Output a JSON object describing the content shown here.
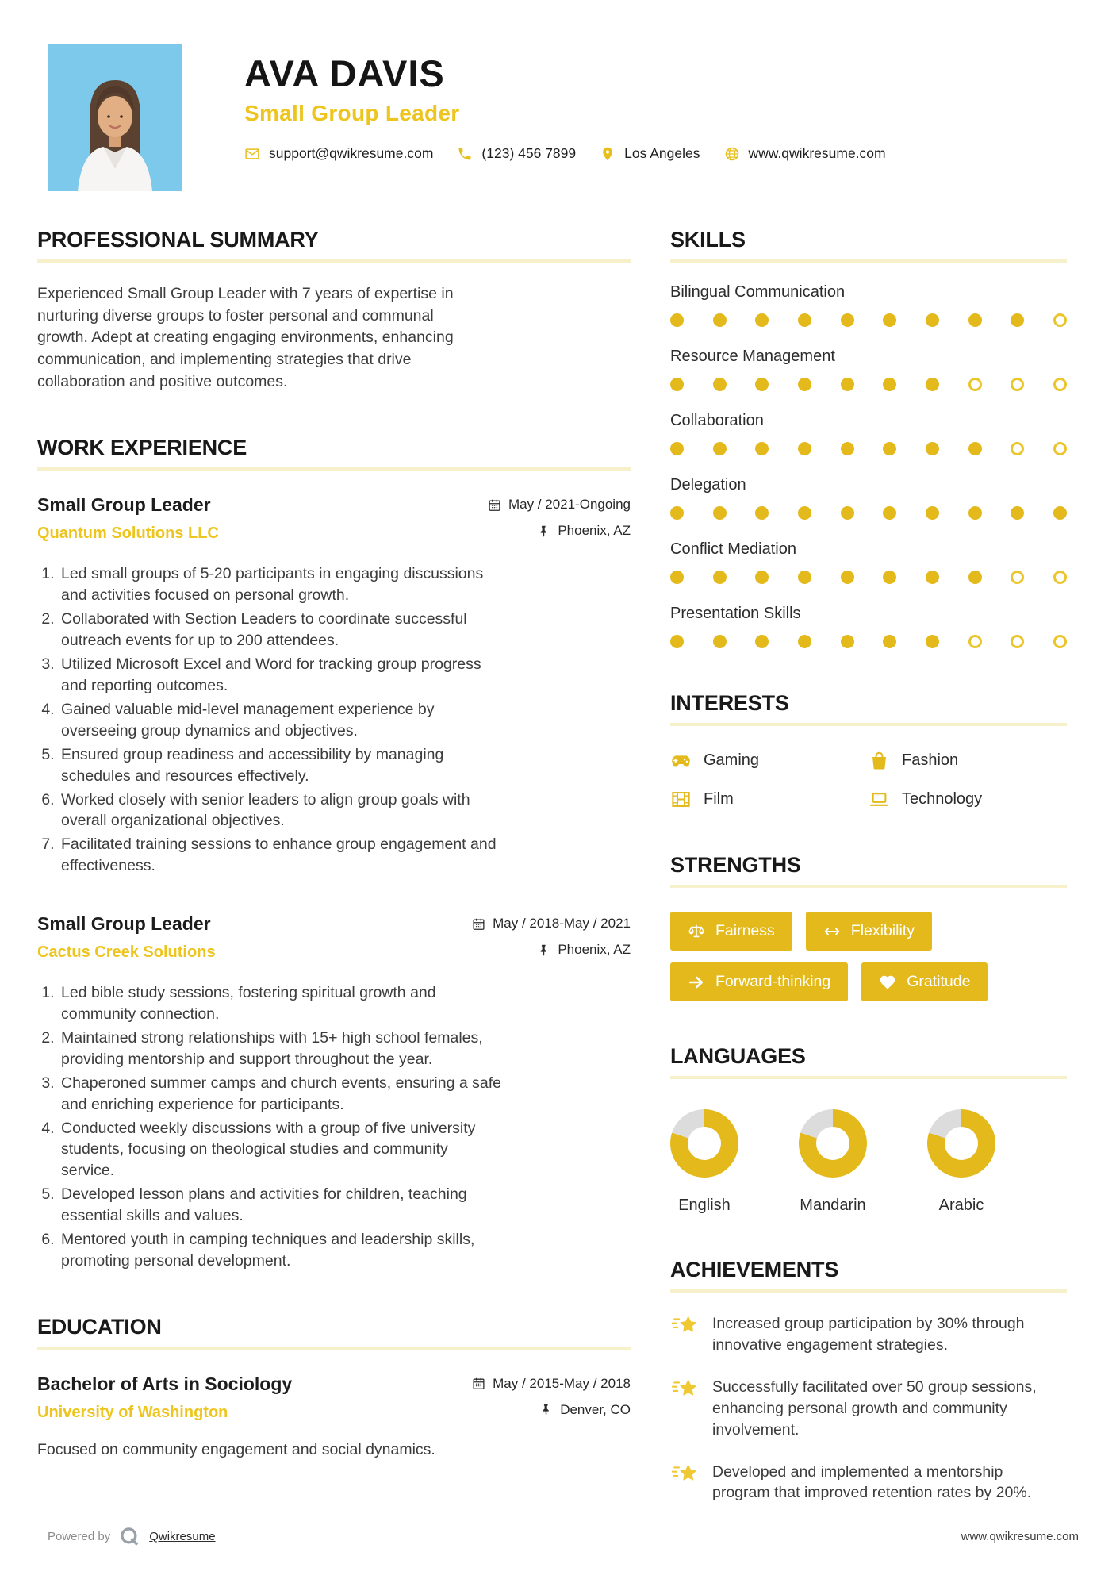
{
  "theme": {
    "accent": "#E3B91C",
    "accent_text": "#EDC51E",
    "rule_color": "#F6F0CB",
    "photo_bg": "#7CC9EC"
  },
  "header": {
    "name": "AVA DAVIS",
    "title": "Small Group Leader",
    "contact": [
      {
        "icon": "envelope",
        "text": "support@qwikresume.com"
      },
      {
        "icon": "phone",
        "text": "(123) 456 7899"
      },
      {
        "icon": "map-pin",
        "text": "Los Angeles"
      },
      {
        "icon": "globe",
        "text": "www.qwikresume.com"
      }
    ]
  },
  "summary": {
    "heading": "PROFESSIONAL SUMMARY",
    "text": "Experienced Small Group Leader with 7 years of expertise in nurturing diverse groups to foster personal and communal growth. Adept at creating engaging environments, enhancing communication, and implementing strategies that drive collaboration and positive outcomes."
  },
  "work": {
    "heading": "WORK EXPERIENCE",
    "jobs": [
      {
        "title": "Small Group Leader",
        "company": "Quantum Solutions LLC",
        "dates": "May / 2021-Ongoing",
        "location": "Phoenix, AZ",
        "bullets": [
          "Led small groups of 5-20 participants in engaging discussions and activities focused on personal growth.",
          "Collaborated with Section Leaders to coordinate successful outreach events for up to 200 attendees.",
          "Utilized Microsoft Excel and Word for tracking group progress and reporting outcomes.",
          "Gained valuable mid-level management experience by overseeing group dynamics and objectives.",
          "Ensured group readiness and accessibility by managing schedules and resources effectively.",
          "Worked closely with senior leaders to align group goals with overall organizational objectives.",
          "Facilitated training sessions to enhance group engagement and effectiveness."
        ]
      },
      {
        "title": "Small Group Leader",
        "company": "Cactus Creek Solutions",
        "dates": "May / 2018-May / 2021",
        "location": "Phoenix, AZ",
        "bullets": [
          "Led bible study sessions, fostering spiritual growth and community connection.",
          "Maintained strong relationships with 15+ high school females, providing mentorship and support throughout the year.",
          "Chaperoned summer camps and church events, ensuring a safe and enriching experience for participants.",
          "Conducted weekly discussions with a group of five university students, focusing on theological studies and community service.",
          "Developed lesson plans and activities for children, teaching essential skills and values.",
          "Mentored youth in camping techniques and leadership skills, promoting personal development."
        ]
      }
    ]
  },
  "education": {
    "heading": "EDUCATION",
    "degree": "Bachelor of Arts in Sociology",
    "school": "University of Washington",
    "dates": "May / 2015-May / 2018",
    "location": "Denver, CO",
    "description": "Focused on community engagement and social dynamics."
  },
  "skills": {
    "heading": "SKILLS",
    "scale_max": 10,
    "items": [
      {
        "label": "Bilingual Communication",
        "level": 9
      },
      {
        "label": "Resource Management",
        "level": 7
      },
      {
        "label": "Collaboration",
        "level": 8
      },
      {
        "label": "Delegation",
        "level": 10
      },
      {
        "label": "Conflict Mediation",
        "level": 8
      },
      {
        "label": "Presentation Skills",
        "level": 7
      }
    ]
  },
  "interests": {
    "heading": "INTERESTS",
    "items": [
      {
        "icon": "gamepad",
        "label": "Gaming"
      },
      {
        "icon": "bag",
        "label": "Fashion"
      },
      {
        "icon": "film",
        "label": "Film"
      },
      {
        "icon": "laptop",
        "label": "Technology"
      }
    ]
  },
  "strengths": {
    "heading": "STRENGTHS",
    "items": [
      {
        "icon": "scales",
        "label": "Fairness"
      },
      {
        "icon": "arrow-left-right",
        "label": "Flexibility"
      },
      {
        "icon": "arrow-right",
        "label": "Forward-thinking"
      },
      {
        "icon": "heart",
        "label": "Gratitude"
      }
    ]
  },
  "languages": {
    "heading": "LANGUAGES",
    "items": [
      {
        "label": "English",
        "percent": 80
      },
      {
        "label": "Mandarin",
        "percent": 80
      },
      {
        "label": "Arabic",
        "percent": 80
      }
    ]
  },
  "achievements": {
    "heading": "ACHIEVEMENTS",
    "items": [
      "Increased group participation by 30% through innovative engagement strategies.",
      "Successfully facilitated over 50 group sessions, enhancing personal growth and community involvement.",
      "Developed and implemented a mentorship program that improved retention rates by 20%."
    ]
  },
  "footer": {
    "powered_by": "Powered by",
    "brand": "Qwikresume",
    "site": "www.qwikresume.com"
  }
}
